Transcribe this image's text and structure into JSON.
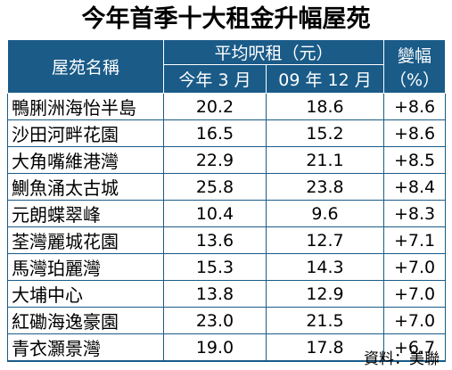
{
  "title": "今年首季十大租金升幅屋苑",
  "header": {
    "estate": "屋苑名稱",
    "rent_group": "平均呎租（元）",
    "col_mar": "今年 3 月",
    "col_dec": "09 年 12 月",
    "change_line1": "變幅",
    "change_line2": "（%）"
  },
  "rows": [
    {
      "name": "鴨脷洲海怡半島",
      "mar": "20.2",
      "dec": "18.6",
      "change": "+8.6"
    },
    {
      "name": "沙田河畔花園",
      "mar": "16.5",
      "dec": "15.2",
      "change": "+8.6"
    },
    {
      "name": "大角嘴維港灣",
      "mar": "22.9",
      "dec": "21.1",
      "change": "+8.5"
    },
    {
      "name": "鰂魚涌太古城",
      "mar": "25.8",
      "dec": "23.8",
      "change": "+8.4"
    },
    {
      "name": "元朗蝶翠峰",
      "mar": "10.4",
      "dec": "9.6",
      "change": "+8.3"
    },
    {
      "name": "荃灣麗城花園",
      "mar": "13.6",
      "dec": "12.7",
      "change": "+7.1"
    },
    {
      "name": "馬灣珀麗灣",
      "mar": "15.3",
      "dec": "14.3",
      "change": "+7.0"
    },
    {
      "name": "大埔中心",
      "mar": "13.8",
      "dec": "12.9",
      "change": "+7.0"
    },
    {
      "name": "紅磡海逸豪園",
      "mar": "23.0",
      "dec": "21.5",
      "change": "+7.0"
    },
    {
      "name": "青衣灝景灣",
      "mar": "19.0",
      "dec": "17.8",
      "change": "+6.7"
    }
  ],
  "footer": "資料：美聯"
}
